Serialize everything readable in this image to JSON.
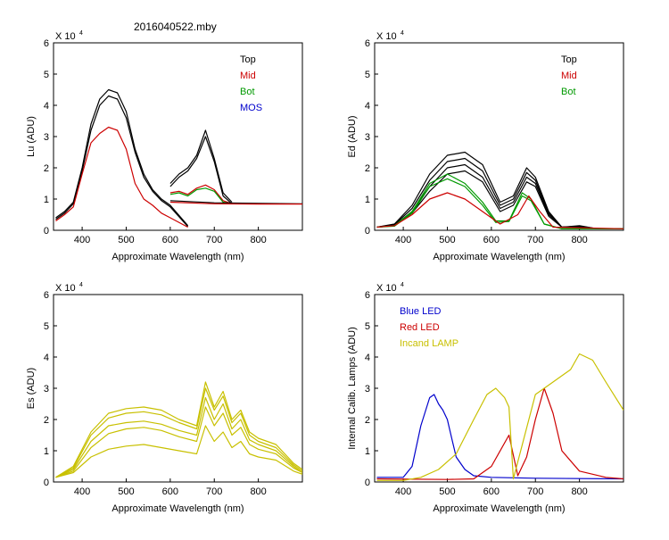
{
  "figure_title": "2016040522.mby",
  "chart_data": [
    {
      "type": "line",
      "title": "",
      "ylabel": "Lu (ADU)",
      "xlabel": "Approximate Wavelength (nm)",
      "multiplier_label": "X 10",
      "multiplier_exp": "4",
      "xlim": [
        335,
        900
      ],
      "ylim": [
        0,
        6
      ],
      "xticks": [
        "400",
        "500",
        "600",
        "700",
        "800"
      ],
      "yticks": [
        "0",
        "1",
        "2",
        "3",
        "4",
        "5",
        "6"
      ],
      "legend": [
        {
          "label": "Top",
          "color": "#000000"
        },
        {
          "label": "Mid",
          "color": "#cc0000"
        },
        {
          "label": "Bot",
          "color": "#009900"
        },
        {
          "label": "MOS",
          "color": "#0000cc"
        }
      ],
      "series": [
        {
          "name": "Top",
          "color": "#000000",
          "x": [
            340,
            360,
            380,
            400,
            420,
            440,
            460,
            480,
            500,
            520,
            540,
            560,
            580,
            600,
            640
          ],
          "y": [
            0.4,
            0.6,
            0.9,
            2.0,
            3.4,
            4.2,
            4.5,
            4.4,
            3.8,
            2.6,
            1.8,
            1.3,
            1.0,
            0.8,
            0.15
          ]
        },
        {
          "name": "Top",
          "color": "#000000",
          "x": [
            340,
            360,
            380,
            400,
            420,
            440,
            460,
            480,
            500,
            520,
            540,
            560,
            580,
            600,
            640
          ],
          "y": [
            0.35,
            0.55,
            0.85,
            1.9,
            3.2,
            4.0,
            4.3,
            4.2,
            3.6,
            2.5,
            1.7,
            1.25,
            0.95,
            0.75,
            0.12
          ]
        },
        {
          "name": "Mid",
          "color": "#cc0000",
          "x": [
            340,
            360,
            380,
            400,
            420,
            440,
            460,
            480,
            500,
            520,
            540,
            560,
            580,
            600,
            640
          ],
          "y": [
            0.3,
            0.5,
            0.75,
            1.8,
            2.8,
            3.1,
            3.3,
            3.2,
            2.6,
            1.5,
            1.0,
            0.8,
            0.55,
            0.4,
            0.1
          ]
        },
        {
          "name": "Top",
          "color": "#000000",
          "x": [
            600,
            620,
            640,
            660,
            680,
            700,
            720,
            740
          ],
          "y": [
            1.5,
            1.8,
            2.0,
            2.4,
            3.2,
            2.3,
            1.2,
            0.9
          ]
        },
        {
          "name": "Top",
          "color": "#000000",
          "x": [
            600,
            620,
            640,
            660,
            680,
            700,
            720,
            740
          ],
          "y": [
            1.4,
            1.7,
            1.9,
            2.3,
            3.0,
            2.2,
            1.1,
            0.85
          ]
        },
        {
          "name": "Mid",
          "color": "#cc0000",
          "x": [
            600,
            620,
            640,
            660,
            680,
            700,
            720,
            740
          ],
          "y": [
            1.2,
            1.25,
            1.15,
            1.35,
            1.45,
            1.3,
            0.95,
            0.85
          ]
        },
        {
          "name": "Bot",
          "color": "#009900",
          "x": [
            600,
            620,
            640,
            660,
            680,
            700,
            720,
            740
          ],
          "y": [
            1.15,
            1.2,
            1.1,
            1.3,
            1.35,
            1.25,
            0.9,
            0.85
          ]
        },
        {
          "name": "Top",
          "color": "#000000",
          "x": [
            600,
            700,
            800,
            900
          ],
          "y": [
            0.95,
            0.88,
            0.86,
            0.85
          ]
        },
        {
          "name": "Mid",
          "color": "#cc0000",
          "x": [
            600,
            700,
            800,
            900
          ],
          "y": [
            0.9,
            0.85,
            0.84,
            0.84
          ]
        }
      ]
    },
    {
      "type": "line",
      "title": "",
      "ylabel": "Ed  (ADU)",
      "xlabel": "Approximate Wavelength (nm)",
      "multiplier_label": "X 10",
      "multiplier_exp": "4",
      "xlim": [
        335,
        900
      ],
      "ylim": [
        0,
        6
      ],
      "xticks": [
        "400",
        "500",
        "600",
        "700",
        "800"
      ],
      "yticks": [
        "0",
        "1",
        "2",
        "3",
        "4",
        "5",
        "6"
      ],
      "legend": [
        {
          "label": "Top",
          "color": "#000000"
        },
        {
          "label": "Mid",
          "color": "#cc0000"
        },
        {
          "label": "Bot",
          "color": "#009900"
        }
      ],
      "series": [
        {
          "name": "Top",
          "color": "#000000",
          "x": [
            340,
            380,
            420,
            460,
            500,
            540,
            580,
            620,
            650,
            680,
            700,
            730,
            760,
            800,
            840,
            900
          ],
          "y": [
            0.1,
            0.2,
            0.8,
            1.8,
            2.4,
            2.5,
            2.1,
            0.9,
            1.1,
            2.0,
            1.7,
            0.6,
            0.1,
            0.15,
            0.05,
            0.05
          ]
        },
        {
          "name": "Top",
          "color": "#000000",
          "x": [
            340,
            380,
            420,
            460,
            500,
            540,
            580,
            620,
            650,
            680,
            700,
            730,
            760,
            800,
            840,
            900
          ],
          "y": [
            0.1,
            0.18,
            0.7,
            1.6,
            2.2,
            2.3,
            1.9,
            0.8,
            1.0,
            1.85,
            1.6,
            0.55,
            0.1,
            0.13,
            0.05,
            0.05
          ]
        },
        {
          "name": "Top",
          "color": "#000000",
          "x": [
            340,
            380,
            420,
            460,
            500,
            540,
            580,
            620,
            650,
            680,
            700,
            730,
            760,
            800,
            840,
            900
          ],
          "y": [
            0.1,
            0.16,
            0.6,
            1.4,
            2.0,
            2.1,
            1.7,
            0.7,
            0.9,
            1.7,
            1.5,
            0.5,
            0.1,
            0.12,
            0.05,
            0.05
          ]
        },
        {
          "name": "Top",
          "color": "#000000",
          "x": [
            340,
            380,
            420,
            460,
            500,
            540,
            580,
            620,
            650,
            680,
            700,
            730,
            760,
            800,
            840,
            900
          ],
          "y": [
            0.1,
            0.15,
            0.55,
            1.25,
            1.8,
            1.9,
            1.55,
            0.6,
            0.8,
            1.55,
            1.4,
            0.45,
            0.1,
            0.1,
            0.05,
            0.05
          ]
        },
        {
          "name": "Bot",
          "color": "#009900",
          "x": [
            340,
            380,
            420,
            460,
            500,
            540,
            580,
            610,
            640,
            670,
            690,
            720,
            760,
            900
          ],
          "y": [
            0.1,
            0.15,
            0.6,
            1.5,
            1.8,
            1.5,
            0.9,
            0.3,
            0.3,
            1.2,
            1.0,
            0.2,
            0.05,
            0.05
          ]
        },
        {
          "name": "Bot",
          "color": "#009900",
          "x": [
            340,
            380,
            420,
            460,
            500,
            540,
            580,
            610,
            640,
            670,
            690,
            720,
            760,
            900
          ],
          "y": [
            0.1,
            0.13,
            0.55,
            1.4,
            1.65,
            1.4,
            0.8,
            0.25,
            0.28,
            1.1,
            0.95,
            0.2,
            0.05,
            0.05
          ]
        },
        {
          "name": "Mid",
          "color": "#cc0000",
          "x": [
            340,
            380,
            420,
            460,
            500,
            540,
            580,
            620,
            660,
            685,
            710,
            740,
            900
          ],
          "y": [
            0.1,
            0.15,
            0.5,
            1.0,
            1.2,
            1.0,
            0.6,
            0.2,
            0.5,
            1.1,
            0.6,
            0.1,
            0.05
          ]
        }
      ]
    },
    {
      "type": "line",
      "title": "",
      "ylabel": "Es  (ADU)",
      "xlabel": "Approximate Wavelength (nm)",
      "multiplier_label": "X 10",
      "multiplier_exp": "4",
      "xlim": [
        335,
        900
      ],
      "ylim": [
        0,
        6
      ],
      "xticks": [
        "400",
        "500",
        "600",
        "700",
        "800"
      ],
      "yticks": [
        "0",
        "1",
        "2",
        "3",
        "4",
        "5",
        "6"
      ],
      "legend": [],
      "series": [
        {
          "name": "Es",
          "color": "#c8c000",
          "x": [
            340,
            380,
            420,
            460,
            500,
            540,
            580,
            620,
            660,
            680,
            700,
            720,
            740,
            760,
            780,
            800,
            840,
            880,
            900
          ],
          "y": [
            0.15,
            0.5,
            1.6,
            2.2,
            2.35,
            2.4,
            2.3,
            2.0,
            1.8,
            3.2,
            2.4,
            2.9,
            2.0,
            2.3,
            1.6,
            1.4,
            1.2,
            0.6,
            0.4
          ]
        },
        {
          "name": "Es",
          "color": "#c8c000",
          "x": [
            340,
            380,
            420,
            460,
            500,
            540,
            580,
            620,
            660,
            680,
            700,
            720,
            740,
            760,
            780,
            800,
            840,
            880,
            900
          ],
          "y": [
            0.15,
            0.45,
            1.5,
            2.05,
            2.2,
            2.25,
            2.15,
            1.9,
            1.7,
            3.0,
            2.3,
            2.75,
            1.9,
            2.2,
            1.5,
            1.3,
            1.1,
            0.55,
            0.35
          ]
        },
        {
          "name": "Es",
          "color": "#c8c000",
          "x": [
            340,
            380,
            420,
            460,
            500,
            540,
            580,
            620,
            660,
            680,
            700,
            720,
            740,
            760,
            780,
            800,
            840,
            880,
            900
          ],
          "y": [
            0.15,
            0.4,
            1.3,
            1.8,
            1.9,
            1.95,
            1.85,
            1.65,
            1.5,
            2.7,
            2.0,
            2.5,
            1.7,
            2.0,
            1.35,
            1.2,
            1.0,
            0.5,
            0.3
          ]
        },
        {
          "name": "Es",
          "color": "#c8c000",
          "x": [
            340,
            380,
            420,
            460,
            500,
            540,
            580,
            620,
            660,
            680,
            700,
            720,
            740,
            760,
            780,
            800,
            840,
            880,
            900
          ],
          "y": [
            0.15,
            0.35,
            1.1,
            1.55,
            1.7,
            1.75,
            1.65,
            1.45,
            1.3,
            2.4,
            1.8,
            2.2,
            1.5,
            1.75,
            1.2,
            1.05,
            0.9,
            0.45,
            0.3
          ]
        },
        {
          "name": "Es",
          "color": "#c8c000",
          "x": [
            340,
            380,
            420,
            460,
            500,
            540,
            580,
            620,
            660,
            680,
            700,
            720,
            740,
            760,
            780,
            800,
            840,
            880,
            900
          ],
          "y": [
            0.15,
            0.3,
            0.8,
            1.05,
            1.15,
            1.2,
            1.1,
            1.0,
            0.9,
            1.8,
            1.3,
            1.6,
            1.1,
            1.3,
            0.9,
            0.8,
            0.7,
            0.35,
            0.25
          ]
        }
      ]
    },
    {
      "type": "line",
      "title": "",
      "ylabel": "Internal Calib. Lamps (ADU)",
      "xlabel": "Approximate Wavelength (nm)",
      "multiplier_label": "X 10",
      "multiplier_exp": "4",
      "xlim": [
        335,
        900
      ],
      "ylim": [
        0,
        6
      ],
      "xticks": [
        "400",
        "500",
        "600",
        "700",
        "800"
      ],
      "yticks": [
        "0",
        "1",
        "2",
        "3",
        "4",
        "5",
        "6"
      ],
      "legend": [
        {
          "label": "Blue LED",
          "color": "#0000cc"
        },
        {
          "label": "Red LED",
          "color": "#cc0000"
        },
        {
          "label": "Incand LAMP",
          "color": "#c8c000"
        }
      ],
      "series": [
        {
          "name": "Blue LED",
          "color": "#0000cc",
          "x": [
            340,
            400,
            420,
            440,
            460,
            470,
            480,
            490,
            500,
            510,
            520,
            540,
            560,
            600,
            700,
            900
          ],
          "y": [
            0.15,
            0.15,
            0.5,
            1.8,
            2.7,
            2.8,
            2.5,
            2.3,
            2.0,
            1.4,
            0.8,
            0.4,
            0.2,
            0.15,
            0.12,
            0.1
          ]
        },
        {
          "name": "Red LED",
          "color": "#cc0000",
          "x": [
            340,
            500,
            560,
            600,
            640,
            660,
            680,
            700,
            720,
            740,
            760,
            800,
            860,
            900
          ],
          "y": [
            0.1,
            0.08,
            0.1,
            0.5,
            1.5,
            0.2,
            0.8,
            2.0,
            3.0,
            2.2,
            1.0,
            0.35,
            0.15,
            0.1
          ]
        },
        {
          "name": "Incand LAMP",
          "color": "#c8c000",
          "x": [
            340,
            400,
            440,
            480,
            520,
            560,
            590,
            610,
            630,
            640,
            650,
            700,
            740,
            780,
            800,
            830,
            860,
            900
          ],
          "y": [
            0.05,
            0.05,
            0.15,
            0.4,
            0.9,
            2.0,
            2.8,
            3.0,
            2.7,
            2.4,
            0.1,
            2.8,
            3.2,
            3.6,
            4.1,
            3.9,
            3.2,
            2.3
          ]
        }
      ]
    }
  ]
}
